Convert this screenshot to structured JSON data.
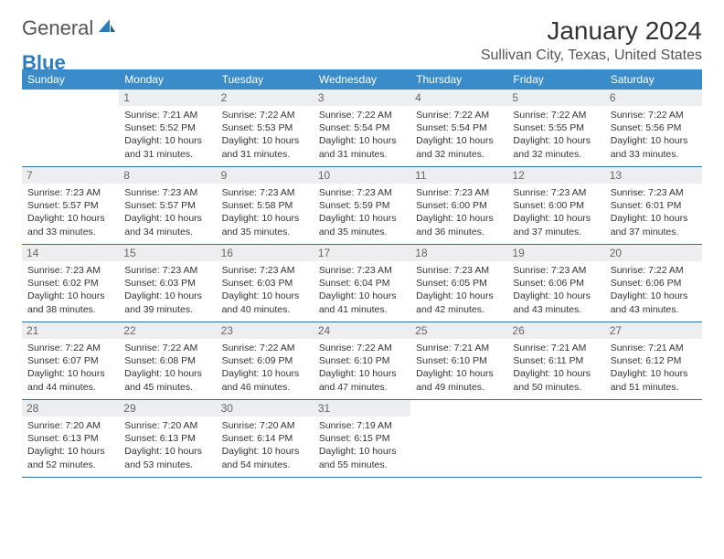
{
  "logo": {
    "general": "General",
    "blue": "Blue"
  },
  "title": "January 2024",
  "location": "Sullivan City, Texas, United States",
  "colors": {
    "header_bg": "#3a8bc9",
    "header_text": "#ffffff",
    "daynum_bg": "#eceeef",
    "daynum_text": "#666666",
    "text": "#333333",
    "week_border": "#2b6fa3",
    "logo_general": "#555555",
    "logo_blue": "#2b7bbf"
  },
  "dow": [
    "Sunday",
    "Monday",
    "Tuesday",
    "Wednesday",
    "Thursday",
    "Friday",
    "Saturday"
  ],
  "days": [
    {
      "n": "",
      "sr": "",
      "ss": "",
      "dl": ""
    },
    {
      "n": "1",
      "sr": "Sunrise: 7:21 AM",
      "ss": "Sunset: 5:52 PM",
      "dl": "Daylight: 10 hours and 31 minutes."
    },
    {
      "n": "2",
      "sr": "Sunrise: 7:22 AM",
      "ss": "Sunset: 5:53 PM",
      "dl": "Daylight: 10 hours and 31 minutes."
    },
    {
      "n": "3",
      "sr": "Sunrise: 7:22 AM",
      "ss": "Sunset: 5:54 PM",
      "dl": "Daylight: 10 hours and 31 minutes."
    },
    {
      "n": "4",
      "sr": "Sunrise: 7:22 AM",
      "ss": "Sunset: 5:54 PM",
      "dl": "Daylight: 10 hours and 32 minutes."
    },
    {
      "n": "5",
      "sr": "Sunrise: 7:22 AM",
      "ss": "Sunset: 5:55 PM",
      "dl": "Daylight: 10 hours and 32 minutes."
    },
    {
      "n": "6",
      "sr": "Sunrise: 7:22 AM",
      "ss": "Sunset: 5:56 PM",
      "dl": "Daylight: 10 hours and 33 minutes."
    },
    {
      "n": "7",
      "sr": "Sunrise: 7:23 AM",
      "ss": "Sunset: 5:57 PM",
      "dl": "Daylight: 10 hours and 33 minutes."
    },
    {
      "n": "8",
      "sr": "Sunrise: 7:23 AM",
      "ss": "Sunset: 5:57 PM",
      "dl": "Daylight: 10 hours and 34 minutes."
    },
    {
      "n": "9",
      "sr": "Sunrise: 7:23 AM",
      "ss": "Sunset: 5:58 PM",
      "dl": "Daylight: 10 hours and 35 minutes."
    },
    {
      "n": "10",
      "sr": "Sunrise: 7:23 AM",
      "ss": "Sunset: 5:59 PM",
      "dl": "Daylight: 10 hours and 35 minutes."
    },
    {
      "n": "11",
      "sr": "Sunrise: 7:23 AM",
      "ss": "Sunset: 6:00 PM",
      "dl": "Daylight: 10 hours and 36 minutes."
    },
    {
      "n": "12",
      "sr": "Sunrise: 7:23 AM",
      "ss": "Sunset: 6:00 PM",
      "dl": "Daylight: 10 hours and 37 minutes."
    },
    {
      "n": "13",
      "sr": "Sunrise: 7:23 AM",
      "ss": "Sunset: 6:01 PM",
      "dl": "Daylight: 10 hours and 37 minutes."
    },
    {
      "n": "14",
      "sr": "Sunrise: 7:23 AM",
      "ss": "Sunset: 6:02 PM",
      "dl": "Daylight: 10 hours and 38 minutes."
    },
    {
      "n": "15",
      "sr": "Sunrise: 7:23 AM",
      "ss": "Sunset: 6:03 PM",
      "dl": "Daylight: 10 hours and 39 minutes."
    },
    {
      "n": "16",
      "sr": "Sunrise: 7:23 AM",
      "ss": "Sunset: 6:03 PM",
      "dl": "Daylight: 10 hours and 40 minutes."
    },
    {
      "n": "17",
      "sr": "Sunrise: 7:23 AM",
      "ss": "Sunset: 6:04 PM",
      "dl": "Daylight: 10 hours and 41 minutes."
    },
    {
      "n": "18",
      "sr": "Sunrise: 7:23 AM",
      "ss": "Sunset: 6:05 PM",
      "dl": "Daylight: 10 hours and 42 minutes."
    },
    {
      "n": "19",
      "sr": "Sunrise: 7:23 AM",
      "ss": "Sunset: 6:06 PM",
      "dl": "Daylight: 10 hours and 43 minutes."
    },
    {
      "n": "20",
      "sr": "Sunrise: 7:22 AM",
      "ss": "Sunset: 6:06 PM",
      "dl": "Daylight: 10 hours and 43 minutes."
    },
    {
      "n": "21",
      "sr": "Sunrise: 7:22 AM",
      "ss": "Sunset: 6:07 PM",
      "dl": "Daylight: 10 hours and 44 minutes."
    },
    {
      "n": "22",
      "sr": "Sunrise: 7:22 AM",
      "ss": "Sunset: 6:08 PM",
      "dl": "Daylight: 10 hours and 45 minutes."
    },
    {
      "n": "23",
      "sr": "Sunrise: 7:22 AM",
      "ss": "Sunset: 6:09 PM",
      "dl": "Daylight: 10 hours and 46 minutes."
    },
    {
      "n": "24",
      "sr": "Sunrise: 7:22 AM",
      "ss": "Sunset: 6:10 PM",
      "dl": "Daylight: 10 hours and 47 minutes."
    },
    {
      "n": "25",
      "sr": "Sunrise: 7:21 AM",
      "ss": "Sunset: 6:10 PM",
      "dl": "Daylight: 10 hours and 49 minutes."
    },
    {
      "n": "26",
      "sr": "Sunrise: 7:21 AM",
      "ss": "Sunset: 6:11 PM",
      "dl": "Daylight: 10 hours and 50 minutes."
    },
    {
      "n": "27",
      "sr": "Sunrise: 7:21 AM",
      "ss": "Sunset: 6:12 PM",
      "dl": "Daylight: 10 hours and 51 minutes."
    },
    {
      "n": "28",
      "sr": "Sunrise: 7:20 AM",
      "ss": "Sunset: 6:13 PM",
      "dl": "Daylight: 10 hours and 52 minutes."
    },
    {
      "n": "29",
      "sr": "Sunrise: 7:20 AM",
      "ss": "Sunset: 6:13 PM",
      "dl": "Daylight: 10 hours and 53 minutes."
    },
    {
      "n": "30",
      "sr": "Sunrise: 7:20 AM",
      "ss": "Sunset: 6:14 PM",
      "dl": "Daylight: 10 hours and 54 minutes."
    },
    {
      "n": "31",
      "sr": "Sunrise: 7:19 AM",
      "ss": "Sunset: 6:15 PM",
      "dl": "Daylight: 10 hours and 55 minutes."
    },
    {
      "n": "",
      "sr": "",
      "ss": "",
      "dl": ""
    },
    {
      "n": "",
      "sr": "",
      "ss": "",
      "dl": ""
    },
    {
      "n": "",
      "sr": "",
      "ss": "",
      "dl": ""
    }
  ]
}
